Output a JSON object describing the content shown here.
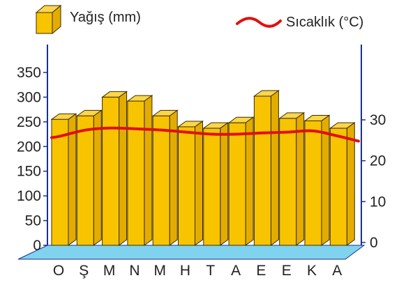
{
  "chart_data": {
    "type": "bar",
    "categories": [
      "O",
      "Ş",
      "M",
      "N",
      "M",
      "H",
      "T",
      "A",
      "E",
      "E",
      "K",
      "A"
    ],
    "series": [
      {
        "name": "Yağış (mm)",
        "type": "bar",
        "axis": "left",
        "values": [
          255,
          262,
          300,
          292,
          262,
          240,
          237,
          248,
          302,
          257,
          252,
          237
        ]
      },
      {
        "name": "Sıcaklık (°C)",
        "type": "line",
        "axis": "right",
        "values": [
          26,
          27.5,
          28,
          27.8,
          27.5,
          27,
          26.5,
          26.5,
          26.8,
          27,
          27.3,
          26
        ]
      }
    ],
    "left_axis": {
      "ticks": [
        "0",
        "50",
        "100",
        "150",
        "200",
        "250",
        "300",
        "350"
      ],
      "ylim": [
        0,
        350
      ]
    },
    "right_axis": {
      "ticks": [
        "0",
        "10",
        "20",
        "30"
      ],
      "ylim": [
        0,
        30
      ]
    },
    "legend_position": "top",
    "grid": false
  },
  "colors": {
    "bar_front": "#f8c400",
    "bar_side": "#e3ac00",
    "bar_top": "#fbd64a",
    "bar_stroke": "#3a2d00",
    "floor": "#7fd3ee",
    "axis": "#1a2f8f",
    "line": "#e01010"
  }
}
